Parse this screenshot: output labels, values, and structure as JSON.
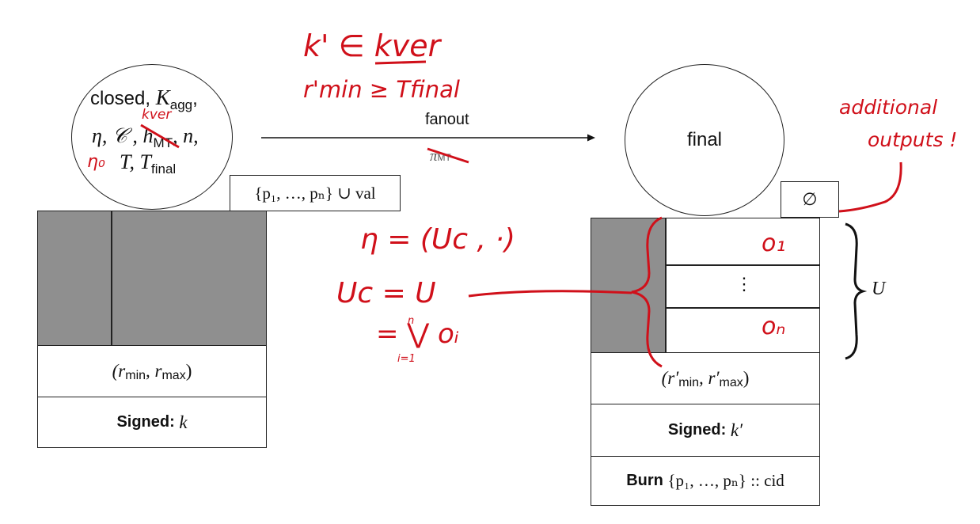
{
  "left_state": {
    "line1_word": "closed,",
    "line1_math": "K",
    "line1_sub": "agg",
    "line1_tail": ",",
    "line2_math": "η, 𝒞 ,",
    "line2_h": "h",
    "line2_sub": "MT",
    "line2_tail": ", n,",
    "line3_math": "T, T",
    "line3_sub": "final",
    "token_set": "{p₁, …, pₙ} ∪ val",
    "validity": "(r",
    "validity_min": "min",
    "validity_mid": ", r",
    "validity_max": "max",
    "validity_end": ")",
    "signed_label": "Signed:",
    "signed_key": "k"
  },
  "transition": {
    "label": "fanout",
    "redeemer": "π",
    "redeemer_sub": "MT"
  },
  "right_state": {
    "circle_label": "final",
    "empty_set": "∅",
    "dots": "⋮",
    "brace_label": "U",
    "validity": "(r′",
    "validity_min": "min",
    "validity_mid": ", r′",
    "validity_max": "max",
    "validity_end": ")",
    "signed_label": "Signed:",
    "signed_key": "k′",
    "burn_label": "Burn",
    "burn_set": "{p₁, …, pₙ} :: cid"
  },
  "annotations": {
    "kver_strike": "kver",
    "eta0": "η₀",
    "condition1": "k' ∈ kver",
    "condition2": "r'min ≥ Tfinal",
    "additional1": "additional",
    "additional2": "outputs !",
    "eta_eq": "η = (Uc , ·)",
    "uc_eq": "Uc = U",
    "union_eq": "= ⋁ oᵢ",
    "union_sub": "i=1",
    "union_sup": "n",
    "o1": "o₁",
    "on": "oₙ"
  },
  "colors": {
    "ink": "#111111",
    "annotation_red": "#d0101a",
    "grey_fill": "#8f8f8f"
  }
}
